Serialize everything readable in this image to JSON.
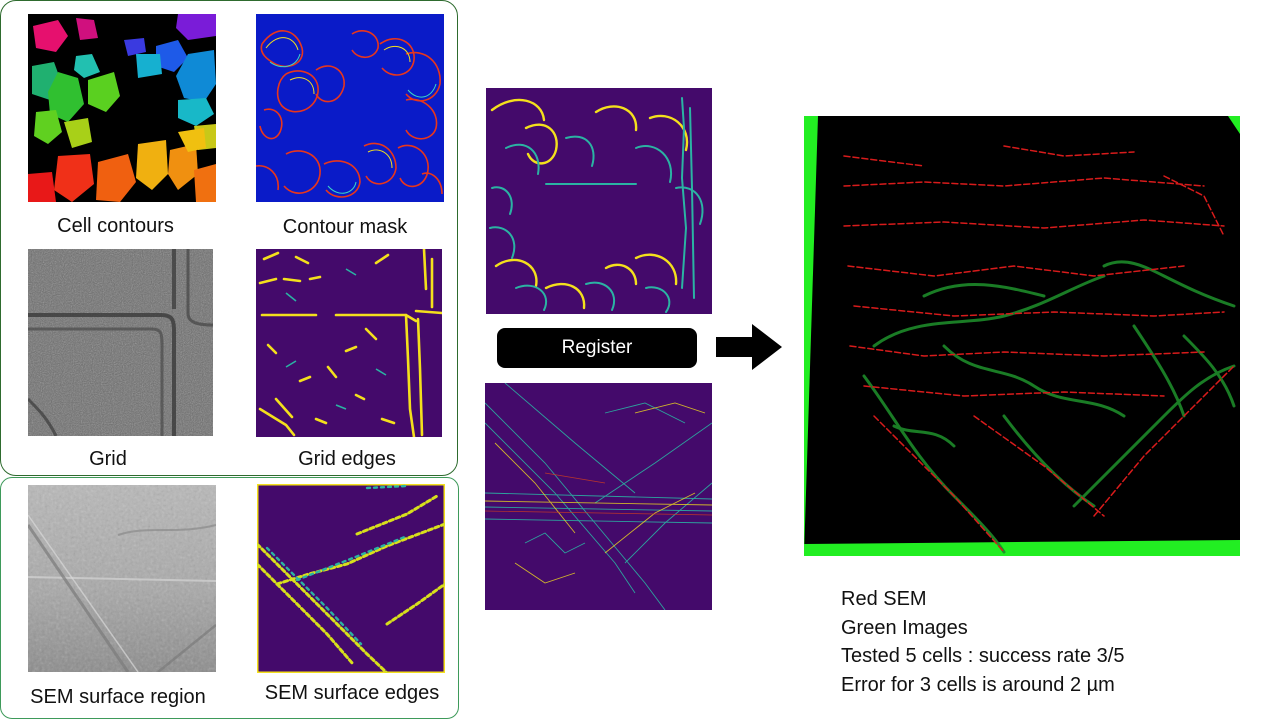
{
  "panels": {
    "cell_contours": "Cell contours",
    "contour_mask": "Contour mask",
    "grid": "Grid",
    "grid_edges": "Grid edges",
    "sem_surface_region": "SEM surface region",
    "sem_surface_edges": "SEM surface edges"
  },
  "register_button": {
    "label": "Register"
  },
  "notes": [
    "Red SEM",
    "Green Images",
    "Tested 5 cells : success rate 3/5",
    "Error for 3 cells is around 2 µm"
  ],
  "colors": {
    "group_border_top": "#2e6b2e",
    "group_border_bottom": "#3e9a5a",
    "mask_background": "#0a1bc8",
    "edge_background": "#440a6b",
    "edge_yellow": "#f4e01c",
    "edge_teal": "#2bb3a3",
    "overlay_red": "#d81b1b",
    "overlay_green": "#1d8a2a",
    "overlay_border_green": "#22ee22"
  },
  "icons": {
    "arrow": "right-arrow-icon"
  }
}
